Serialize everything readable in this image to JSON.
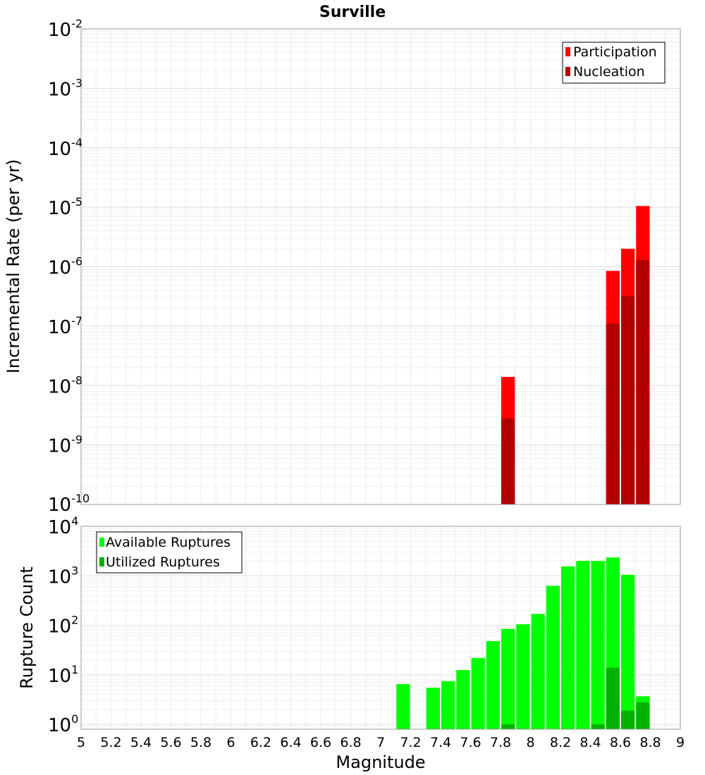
{
  "chart_data": [
    {
      "type": "bar",
      "title": "Surville",
      "ylabel": "Incremental Rate (per yr)",
      "xlabel": "",
      "yscale": "log",
      "ylim": [
        1e-10,
        0.01
      ],
      "xlim": [
        5,
        9
      ],
      "bar_width": 0.1,
      "grid": true,
      "legend": "top-right",
      "y_ticks": [
        {
          "base": "10",
          "exp": "-10",
          "value": 1e-10
        },
        {
          "base": "10",
          "exp": "-9",
          "value": 1e-09
        },
        {
          "base": "10",
          "exp": "-8",
          "value": 1e-08
        },
        {
          "base": "10",
          "exp": "-7",
          "value": 1e-07
        },
        {
          "base": "10",
          "exp": "-6",
          "value": 1e-06
        },
        {
          "base": "10",
          "exp": "-5",
          "value": 1e-05
        },
        {
          "base": "10",
          "exp": "-4",
          "value": 0.0001
        },
        {
          "base": "10",
          "exp": "-3",
          "value": 0.001
        },
        {
          "base": "10",
          "exp": "-2",
          "value": 0.01
        }
      ],
      "series": [
        {
          "name": "Participation",
          "color": "#ff0000",
          "points": [
            {
              "x": 7.85,
              "y": 1.4e-08
            },
            {
              "x": 8.55,
              "y": 8.5e-07
            },
            {
              "x": 8.65,
              "y": 2e-06
            },
            {
              "x": 8.75,
              "y": 1.05e-05
            }
          ]
        },
        {
          "name": "Nucleation",
          "color": "#b20000",
          "points": [
            {
              "x": 7.85,
              "y": 2.8e-09
            },
            {
              "x": 8.55,
              "y": 1.1e-07
            },
            {
              "x": 8.65,
              "y": 3.2e-07
            },
            {
              "x": 8.75,
              "y": 1.3e-06
            }
          ]
        }
      ]
    },
    {
      "type": "bar",
      "title": "",
      "ylabel": "Rupture Count",
      "xlabel": "Magnitude",
      "yscale": "log",
      "ylim": [
        0.8,
        10000
      ],
      "xlim": [
        5,
        9
      ],
      "bar_width": 0.1,
      "grid": true,
      "legend": "top-left",
      "y_ticks": [
        {
          "base": "10",
          "exp": "0",
          "value": 1
        },
        {
          "base": "10",
          "exp": "1",
          "value": 10
        },
        {
          "base": "10",
          "exp": "2",
          "value": 100
        },
        {
          "base": "10",
          "exp": "3",
          "value": 1000
        },
        {
          "base": "10",
          "exp": "4",
          "value": 10000
        }
      ],
      "x_ticks": [
        "5",
        "5.2",
        "5.4",
        "5.6",
        "5.8",
        "6",
        "6.2",
        "6.4",
        "6.6",
        "6.8",
        "7",
        "7.2",
        "7.4",
        "7.6",
        "7.8",
        "8",
        "8.2",
        "8.4",
        "8.6",
        "8.8",
        "9"
      ],
      "series": [
        {
          "name": "Available Ruptures",
          "color": "#00ff00",
          "points": [
            {
              "x": 7.15,
              "y": 6.5
            },
            {
              "x": 7.35,
              "y": 5.5
            },
            {
              "x": 7.45,
              "y": 7.5
            },
            {
              "x": 7.55,
              "y": 12.5
            },
            {
              "x": 7.65,
              "y": 22
            },
            {
              "x": 7.75,
              "y": 48
            },
            {
              "x": 7.85,
              "y": 85
            },
            {
              "x": 7.95,
              "y": 105
            },
            {
              "x": 8.05,
              "y": 170
            },
            {
              "x": 8.15,
              "y": 630
            },
            {
              "x": 8.25,
              "y": 1550
            },
            {
              "x": 8.35,
              "y": 2000
            },
            {
              "x": 8.45,
              "y": 2000
            },
            {
              "x": 8.55,
              "y": 2350
            },
            {
              "x": 8.65,
              "y": 1050
            },
            {
              "x": 8.75,
              "y": 3.7
            }
          ]
        },
        {
          "name": "Utilized Ruptures",
          "color": "#00b200",
          "points": [
            {
              "x": 7.85,
              "y": 1
            },
            {
              "x": 8.45,
              "y": 1
            },
            {
              "x": 8.55,
              "y": 14
            },
            {
              "x": 8.65,
              "y": 1.9
            },
            {
              "x": 8.75,
              "y": 2.8
            }
          ]
        }
      ]
    }
  ]
}
